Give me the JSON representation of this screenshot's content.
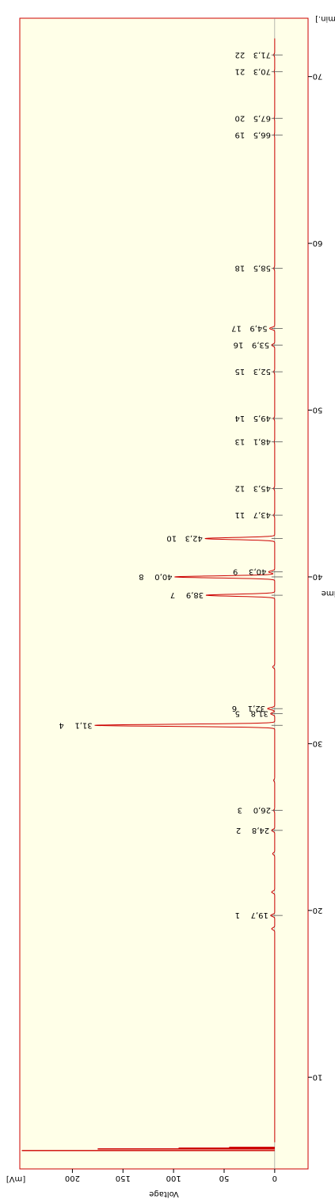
{
  "chart_data": {
    "type": "line",
    "title": "",
    "xlabel": "Time",
    "ylabel": "Voltage",
    "x_unit": "[min.]",
    "y_unit": "[mV]",
    "xlim": [
      4.5,
      73.5
    ],
    "ylim": [
      -33,
      252
    ],
    "x_ticks": [
      "10",
      "20",
      "30",
      "40",
      "50",
      "60",
      "70"
    ],
    "y_ticks": [
      "0",
      "50",
      "100",
      "150",
      "200"
    ],
    "grid": false,
    "colors": {
      "plot_background": "#ffffe8",
      "trace": "#cc0000",
      "frame": "#cc0000",
      "baseline": "#888888"
    },
    "solvent_front": [
      {
        "x": 5.6,
        "y": 250
      },
      {
        "x": 5.7,
        "y": 175
      },
      {
        "x": 5.75,
        "y": 95
      },
      {
        "x": 5.8,
        "y": 45
      }
    ],
    "peaks": [
      {
        "id": "1",
        "time": 19.7,
        "height": 4,
        "label": "19,7",
        "number": "1"
      },
      {
        "id": "2",
        "time": 24.8,
        "height": 3,
        "label": "24,8",
        "number": "2"
      },
      {
        "id": "3",
        "time": 26.0,
        "height": 1,
        "label": "26,0",
        "number": "3"
      },
      {
        "id": "4",
        "time": 31.1,
        "height": 178,
        "label": "31,1",
        "number": "4"
      },
      {
        "id": "5",
        "time": 31.8,
        "height": 4,
        "label": "31,8",
        "number": "5"
      },
      {
        "id": "6",
        "time": 32.1,
        "height": 7,
        "label": "32,1",
        "number": "6"
      },
      {
        "id": "7",
        "time": 38.9,
        "height": 68,
        "label": "38,9",
        "number": "7"
      },
      {
        "id": "8",
        "time": 40.0,
        "height": 99,
        "label": "40,0",
        "number": "8"
      },
      {
        "id": "9",
        "time": 40.3,
        "height": 6,
        "label": "40,3",
        "number": "9"
      },
      {
        "id": "10",
        "time": 42.3,
        "height": 69,
        "label": "42,3",
        "number": "10"
      },
      {
        "id": "11",
        "time": 43.7,
        "height": 1,
        "label": "43,7",
        "number": "11"
      },
      {
        "id": "12",
        "time": 45.3,
        "height": 1,
        "label": "45,3",
        "number": "12"
      },
      {
        "id": "13",
        "time": 48.1,
        "height": 0.5,
        "label": "48,1",
        "number": "13"
      },
      {
        "id": "14",
        "time": 49.5,
        "height": 1,
        "label": "49,5",
        "number": "14"
      },
      {
        "id": "15",
        "time": 52.3,
        "height": 1,
        "label": "52,3",
        "number": "15"
      },
      {
        "id": "16",
        "time": 53.9,
        "height": 3,
        "label": "53,9",
        "number": "16"
      },
      {
        "id": "17",
        "time": 54.9,
        "height": 5,
        "label": "54,9",
        "number": "17"
      },
      {
        "id": "18",
        "time": 58.5,
        "height": 1,
        "label": "58,5",
        "number": "18"
      },
      {
        "id": "19",
        "time": 66.5,
        "height": 0.5,
        "label": "66,5",
        "number": "19"
      },
      {
        "id": "20",
        "time": 67.5,
        "height": 0.5,
        "label": "67,5",
        "number": "20"
      },
      {
        "id": "21",
        "time": 70.3,
        "height": 0.5,
        "label": "70,3",
        "number": "21"
      },
      {
        "id": "22",
        "time": 71.3,
        "height": 1,
        "label": "71,3",
        "number": "22"
      }
    ],
    "minor_features": [
      {
        "time": 18.9,
        "height": 3
      },
      {
        "time": 21.1,
        "height": 3
      },
      {
        "time": 23.4,
        "height": 2
      },
      {
        "time": 27.8,
        "height": 1
      },
      {
        "time": 34.6,
        "height": 2
      }
    ]
  }
}
